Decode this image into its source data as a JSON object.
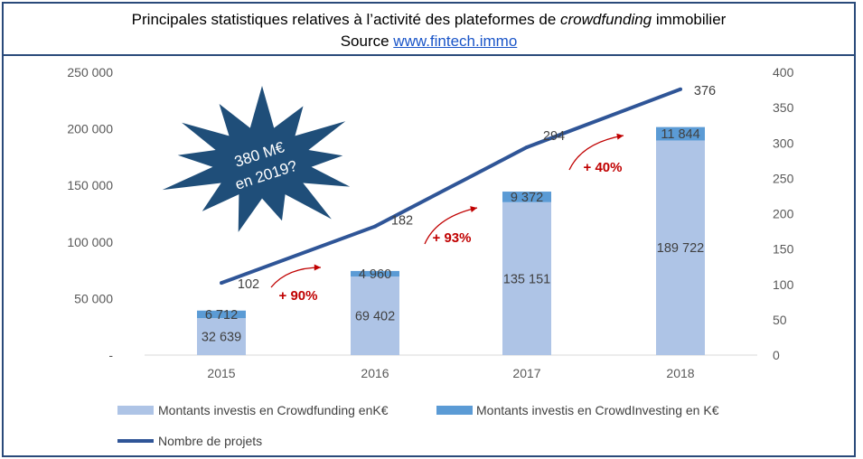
{
  "header": {
    "title_prefix": "Principales statistiques relatives à l’activité des plateformes de ",
    "title_emphasis": "crowdfunding",
    "title_suffix": " immobilier",
    "source_label": "Source ",
    "source_link": "www.fintech.immo"
  },
  "starburst": {
    "line1": "380 M€",
    "line2": "en 2019?",
    "color": "#1f4e79"
  },
  "chart_data": {
    "type": "bar",
    "categories": [
      "2015",
      "2016",
      "2017",
      "2018"
    ],
    "series": [
      {
        "name": "Montants investis en Crowdfunding enK€",
        "kind": "bar-stacked",
        "axis": "left",
        "color": "#aec4e6",
        "values": [
          32639,
          69402,
          135151,
          189722
        ],
        "labels": [
          "32 639",
          "69 402",
          "135 151",
          "189 722"
        ]
      },
      {
        "name": "Montants investis en CrowdInvesting en K€",
        "kind": "bar-stacked",
        "axis": "left",
        "color": "#5b9bd5",
        "values": [
          6712,
          4960,
          9372,
          11844
        ],
        "labels": [
          "6 712",
          "4 960",
          "9 372",
          "11 844"
        ]
      },
      {
        "name": "Nombre de projets",
        "kind": "line",
        "axis": "right",
        "color": "#2f5597",
        "values": [
          102,
          182,
          294,
          376
        ],
        "labels": [
          "102",
          "182",
          "294",
          "376"
        ]
      }
    ],
    "left_axis": {
      "ylim": [
        0,
        250000
      ],
      "tick_values": [
        0,
        50000,
        100000,
        150000,
        200000,
        250000
      ],
      "tick_labels": [
        "-",
        "50 000",
        "100 000",
        "150 000",
        "200 000",
        "250 000"
      ]
    },
    "right_axis": {
      "ylim": [
        0,
        400
      ],
      "tick_values": [
        0,
        50,
        100,
        150,
        200,
        250,
        300,
        350,
        400
      ],
      "tick_labels": [
        "0",
        "50",
        "100",
        "150",
        "200",
        "250",
        "300",
        "350",
        "400"
      ]
    },
    "annotations": [
      "+ 90%",
      "+ 93%",
      "+ 40%"
    ],
    "annotation_color": "#c00000",
    "legend_position": "bottom",
    "grid": false
  }
}
